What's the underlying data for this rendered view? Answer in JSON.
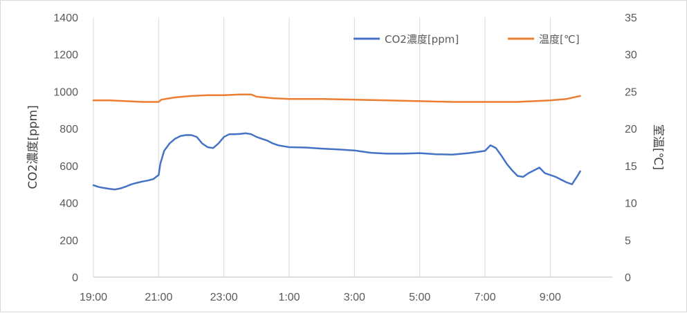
{
  "chart_data": {
    "type": "line",
    "title": "",
    "xlabel": "",
    "ylabel": "CO2濃度[ppm]",
    "y2label": "室温[℃]",
    "ylim": [
      0,
      1400
    ],
    "y2lim": [
      0,
      35
    ],
    "x_range_hours": [
      19,
      34.9
    ],
    "x_ticks": [
      "19:00",
      "21:00",
      "23:00",
      "1:00",
      "3:00",
      "5:00",
      "7:00",
      "9:00"
    ],
    "y_ticks": [
      "0",
      "200",
      "400",
      "600",
      "800",
      "1000",
      "1200",
      "1400"
    ],
    "y2_ticks": [
      "0",
      "5",
      "10",
      "15",
      "20",
      "25",
      "30",
      "35"
    ],
    "grid": "vertical",
    "legend_position": "top-right",
    "series": [
      {
        "name": "CO2濃度[ppm]",
        "axis": "left",
        "color": "#4472C4",
        "points": [
          [
            "19:00",
            495
          ],
          [
            "19:10",
            485
          ],
          [
            "19:20",
            480
          ],
          [
            "19:30",
            475
          ],
          [
            "19:40",
            472
          ],
          [
            "19:50",
            478
          ],
          [
            "20:00",
            488
          ],
          [
            "20:10",
            500
          ],
          [
            "20:20",
            508
          ],
          [
            "20:30",
            515
          ],
          [
            "20:40",
            520
          ],
          [
            "20:50",
            528
          ],
          [
            "21:00",
            550
          ],
          [
            "21:03",
            610
          ],
          [
            "21:10",
            680
          ],
          [
            "21:20",
            720
          ],
          [
            "21:30",
            745
          ],
          [
            "21:40",
            760
          ],
          [
            "21:50",
            765
          ],
          [
            "22:00",
            765
          ],
          [
            "22:10",
            755
          ],
          [
            "22:20",
            720
          ],
          [
            "22:30",
            700
          ],
          [
            "22:40",
            695
          ],
          [
            "22:50",
            720
          ],
          [
            "23:00",
            755
          ],
          [
            "23:10",
            770
          ],
          [
            "23:20",
            770
          ],
          [
            "23:30",
            772
          ],
          [
            "23:40",
            775
          ],
          [
            "23:50",
            770
          ],
          [
            "0:00",
            755
          ],
          [
            "0:10",
            745
          ],
          [
            "0:20",
            735
          ],
          [
            "0:30",
            720
          ],
          [
            "0:40",
            710
          ],
          [
            "0:50",
            705
          ],
          [
            "1:00",
            700
          ],
          [
            "1:30",
            698
          ],
          [
            "2:00",
            692
          ],
          [
            "2:30",
            688
          ],
          [
            "3:00",
            682
          ],
          [
            "3:30",
            670
          ],
          [
            "4:00",
            665
          ],
          [
            "4:30",
            665
          ],
          [
            "5:00",
            668
          ],
          [
            "5:30",
            662
          ],
          [
            "6:00",
            660
          ],
          [
            "6:30",
            668
          ],
          [
            "7:00",
            680
          ],
          [
            "7:10",
            710
          ],
          [
            "7:20",
            695
          ],
          [
            "7:30",
            655
          ],
          [
            "7:40",
            610
          ],
          [
            "7:50",
            575
          ],
          [
            "8:00",
            545
          ],
          [
            "8:10",
            540
          ],
          [
            "8:20",
            560
          ],
          [
            "8:30",
            575
          ],
          [
            "8:40",
            590
          ],
          [
            "8:50",
            560
          ],
          [
            "9:00",
            550
          ],
          [
            "9:10",
            540
          ],
          [
            "9:20",
            525
          ],
          [
            "9:30",
            510
          ],
          [
            "9:40",
            500
          ],
          [
            "9:50",
            545
          ],
          [
            "9:55",
            570
          ]
        ]
      },
      {
        "name": "温度[℃]",
        "axis": "right",
        "color": "#ED7D31",
        "points": [
          [
            "19:00",
            23.8
          ],
          [
            "19:30",
            23.8
          ],
          [
            "20:00",
            23.7
          ],
          [
            "20:30",
            23.6
          ],
          [
            "21:00",
            23.6
          ],
          [
            "21:05",
            23.9
          ],
          [
            "21:30",
            24.2
          ],
          [
            "22:00",
            24.4
          ],
          [
            "22:30",
            24.5
          ],
          [
            "23:00",
            24.5
          ],
          [
            "23:30",
            24.6
          ],
          [
            "23:50",
            24.6
          ],
          [
            "0:00",
            24.3
          ],
          [
            "0:30",
            24.1
          ],
          [
            "1:00",
            24.0
          ],
          [
            "2:00",
            24.0
          ],
          [
            "3:00",
            23.9
          ],
          [
            "4:00",
            23.8
          ],
          [
            "5:00",
            23.7
          ],
          [
            "6:00",
            23.6
          ],
          [
            "7:00",
            23.6
          ],
          [
            "8:00",
            23.6
          ],
          [
            "8:30",
            23.7
          ],
          [
            "9:00",
            23.8
          ],
          [
            "9:30",
            24.0
          ],
          [
            "9:55",
            24.4
          ]
        ]
      }
    ]
  }
}
